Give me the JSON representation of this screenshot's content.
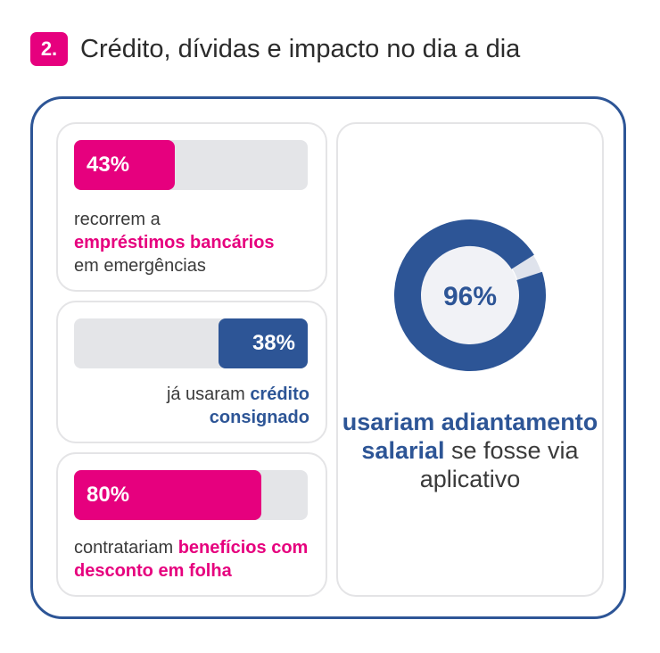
{
  "header": {
    "number": "2.",
    "title": "Crédito, dívidas e impacto no dia a dia"
  },
  "stats": [
    {
      "label": "43%",
      "value": 43,
      "pre": "recorrem a",
      "highlight": "empréstimos bancários",
      "post": "em emergências",
      "color": "#e6007e"
    },
    {
      "label": "38%",
      "value": 38,
      "pre": "já usaram",
      "highlight": "crédito consignado",
      "post": "",
      "color": "#2d5596"
    },
    {
      "label": "80%",
      "value": 80,
      "pre": "contratariam",
      "highlight": "benefícios com desconto em folha",
      "post": "",
      "color": "#e6007e"
    }
  ],
  "donut": {
    "label": "96%",
    "value": 96,
    "highlight": "usariam adiantamento salarial",
    "post": "se fosse via aplicativo",
    "color": "#2d5596"
  },
  "chart_data": [
    {
      "type": "bar",
      "categories": [
        "empréstimos bancários",
        "crédito consignado",
        "benefícios com desconto em folha"
      ],
      "values": [
        43,
        38,
        80
      ],
      "ylim": [
        0,
        100
      ]
    },
    {
      "type": "pie",
      "categories": [
        "adiantamento salarial via aplicativo"
      ],
      "values": [
        96
      ],
      "ylim": [
        0,
        100
      ]
    }
  ]
}
